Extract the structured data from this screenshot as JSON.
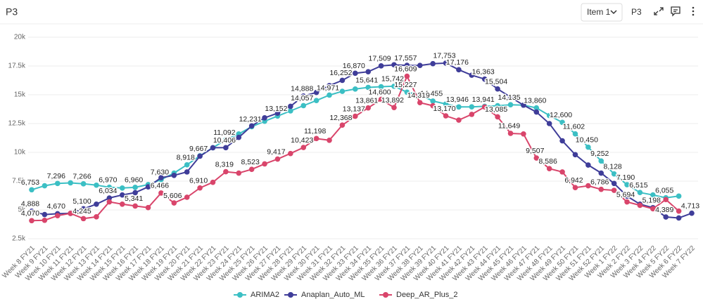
{
  "header": {
    "title": "P3",
    "dropdown": "Item 1",
    "tab": "P3"
  },
  "chart_data": {
    "type": "line",
    "categories": [
      "Week 8 FY21",
      "Week 9 FY21",
      "Week 10 FY21",
      "Week 11 FY21",
      "Week 12 FY21",
      "Week 13 FY21",
      "Week 14 FY21",
      "Week 15 FY21",
      "Week 16 FY21",
      "Week 17 FY21",
      "Week 18 FY21",
      "Week 19 FY21",
      "Week 20 FY21",
      "Week 21 FY21",
      "Week 22 FY21",
      "Week 23 FY21",
      "Week 24 FY21",
      "Week 25 FY21",
      "Week 26 FY21",
      "Week 27 FY21",
      "Week 28 FY21",
      "Week 29 FY21",
      "Week 30 FY21",
      "Week 31 FY21",
      "Week 32 FY21",
      "Week 33 FY21",
      "Week 34 FY21",
      "Week 35 FY21",
      "Week 36 FY21",
      "Week 37 FY21",
      "Week 38 FY21",
      "Week 39 FY21",
      "Week 40 FY21",
      "Week 41 FY21",
      "Week 42 FY21",
      "Week 43 FY21",
      "Week 44 FY21",
      "Week 45 FY21",
      "Week 46 FY21",
      "Week 47 FY21",
      "Week 48 FY21",
      "Week 49 FY21",
      "Week 50 FY21",
      "Week 51 FY21",
      "Week 52 FY21",
      "Week 1 FY22",
      "Week 2 FY22",
      "Week 3 FY22",
      "Week 4 FY22",
      "Week 5 FY22",
      "Week 6 FY22",
      "Week 7 FY22"
    ],
    "ylim": [
      2500,
      20000
    ],
    "yticks": [
      {
        "value": 2500,
        "label": "2.5k"
      },
      {
        "value": 5000,
        "label": "5k"
      },
      {
        "value": 7500,
        "label": "7.5k"
      },
      {
        "value": 10000,
        "label": "10k"
      },
      {
        "value": 12500,
        "label": "12.5k"
      },
      {
        "value": 15000,
        "label": "15k"
      },
      {
        "value": 17500,
        "label": "17.5k"
      },
      {
        "value": 20000,
        "label": "20k"
      }
    ],
    "grid": true,
    "legend": "bottom",
    "series": [
      {
        "name": "ARIMA2",
        "color": "#3bbfc4",
        "values": [
          6753,
          7100,
          7296,
          7350,
          7266,
          7150,
          6970,
          6900,
          6960,
          7200,
          7630,
          8200,
          8918,
          9700,
          10400,
          11092,
          11600,
          12231,
          12700,
          13152,
          13600,
          14057,
          14500,
          14971,
          15300,
          15500,
          15641,
          15700,
          15742,
          15227,
          15000,
          14455,
          14200,
          13946,
          13950,
          14000,
          14050,
          14135,
          14100,
          13860,
          13200,
          12600,
          11602,
          10450,
          9252,
          8128,
          7190,
          6515,
          6300,
          6055,
          6200,
          null
        ],
        "value_labels": [
          "6,753",
          null,
          "7,296",
          null,
          "7,266",
          null,
          "6,970",
          null,
          "6,960",
          null,
          "7,630",
          null,
          "8,918",
          null,
          null,
          "11,092",
          null,
          "12,231",
          null,
          "13,152",
          null,
          "14,057",
          null,
          "14,971",
          null,
          null,
          "15,641",
          null,
          "15,742",
          "15,227",
          null,
          "14,455",
          null,
          "13,946",
          null,
          null,
          null,
          "14,135",
          null,
          "13,860",
          null,
          "12,600",
          "11,602",
          "10,450",
          "9,252",
          "8,128",
          "7,190",
          "6,515",
          null,
          "6,055",
          null,
          null
        ]
      },
      {
        "name": "Anaplan_Auto_ML",
        "color": "#3f3d99",
        "values": [
          4888,
          4600,
          4670,
          4700,
          5100,
          5500,
          6034,
          6300,
          6500,
          7000,
          7800,
          8000,
          8300,
          9667,
          10400,
          10406,
          11300,
          12300,
          13000,
          13400,
          14000,
          14888,
          15200,
          15800,
          16252,
          16870,
          17000,
          17509,
          17600,
          17557,
          17550,
          17700,
          17753,
          17176,
          16700,
          16363,
          15504,
          14800,
          14100,
          13500,
          12500,
          11000,
          9800,
          8900,
          8200,
          7300,
          6200,
          5500,
          5198,
          4389,
          4300,
          4713
        ],
        "value_labels": [
          "4,888",
          null,
          "4,670",
          null,
          "5,100",
          null,
          "6,034",
          null,
          null,
          null,
          null,
          null,
          null,
          "9,667",
          null,
          "10,406",
          null,
          null,
          null,
          null,
          null,
          "14,888",
          null,
          null,
          "16,252",
          "16,870",
          null,
          "17,509",
          null,
          "17,557",
          null,
          null,
          "17,753",
          "17,176",
          null,
          "16,363",
          "15,504",
          null,
          null,
          null,
          null,
          null,
          null,
          null,
          null,
          null,
          null,
          null,
          "5,198",
          "4,389",
          null,
          "4,713"
        ]
      },
      {
        "name": "Deep_AR_Plus_2",
        "color": "#d9456b",
        "values": [
          4070,
          4100,
          4500,
          4700,
          4245,
          4400,
          5700,
          5500,
          5341,
          5200,
          6466,
          5606,
          6100,
          6910,
          7400,
          8319,
          8200,
          8523,
          9000,
          9417,
          9900,
          10423,
          11198,
          11050,
          12368,
          13137,
          13861,
          14600,
          13892,
          16609,
          14319,
          14050,
          13170,
          12800,
          13300,
          13941,
          13085,
          11649,
          11600,
          9507,
          8586,
          8300,
          6942,
          7100,
          6786,
          6700,
          5694,
          5400,
          5100,
          5900,
          4900,
          null
        ],
        "value_labels": [
          "4,070",
          null,
          null,
          null,
          "4,245",
          null,
          null,
          null,
          "5,341",
          null,
          "6,466",
          "5,606",
          null,
          "6,910",
          null,
          "8,319",
          null,
          "8,523",
          null,
          "9,417",
          null,
          "10,423",
          "11,198",
          null,
          "12,368",
          "13,137",
          "13,861",
          "14,600",
          "13,892",
          "16,609",
          "14,319",
          null,
          "13,170",
          null,
          null,
          "13,941",
          "13,085",
          "11,649",
          null,
          "9,507",
          "8,586",
          null,
          "6,942",
          null,
          "6,786",
          null,
          "5,694",
          null,
          null,
          null,
          null,
          null
        ]
      }
    ]
  }
}
